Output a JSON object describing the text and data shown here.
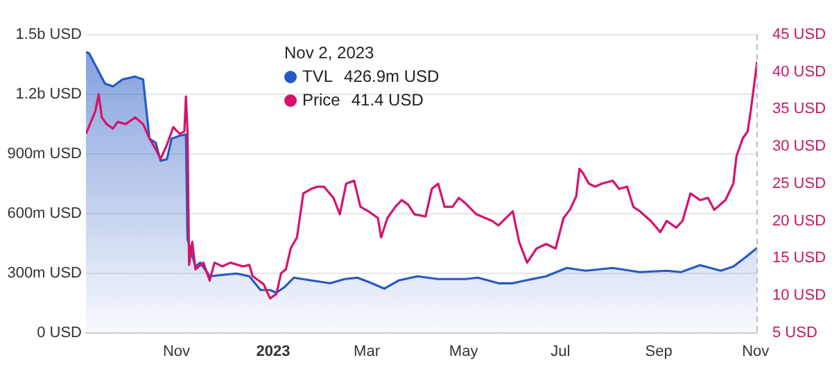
{
  "chart_data": {
    "type": "line",
    "legend": "top",
    "grid": "y",
    "marker": "none",
    "annotations": [
      "Nov 2, 2023",
      "426.9m USD",
      "41.4 USD"
    ],
    "xlim": [
      "2022-09-05",
      "2023-11-02"
    ],
    "xticks": [
      {
        "value": "2022-11-01",
        "label": "Nov"
      },
      {
        "value": "2023-01-01",
        "label": "2023"
      },
      {
        "value": "2023-03-01",
        "label": "Mar"
      },
      {
        "value": "2023-05-01",
        "label": "May"
      },
      {
        "value": "2023-07-01",
        "label": "Jul"
      },
      {
        "value": "2023-09-01",
        "label": "Sep"
      },
      {
        "value": "2023-11-01",
        "label": "Nov"
      }
    ],
    "ylim": [
      0,
      1500000000
    ],
    "yticks": [
      {
        "value": 0,
        "label": "0 USD"
      },
      {
        "value": 300000000,
        "label": "300m USD"
      },
      {
        "value": 600000000,
        "label": "600m USD"
      },
      {
        "value": 900000000,
        "label": "900m USD"
      },
      {
        "value": 1200000000,
        "label": "1.2b USD"
      },
      {
        "value": 1500000000,
        "label": "1.5b USD"
      }
    ],
    "y2lim": [
      5,
      45
    ],
    "y2ticks": [
      {
        "value": 5,
        "label": "5 USD"
      },
      {
        "value": 10,
        "label": "10 USD"
      },
      {
        "value": 15,
        "label": "15 USD"
      },
      {
        "value": 20,
        "label": "20 USD"
      },
      {
        "value": 25,
        "label": "25 USD"
      },
      {
        "value": 30,
        "label": "30 USD"
      },
      {
        "value": 35,
        "label": "35 USD"
      },
      {
        "value": 40,
        "label": "40 USD"
      },
      {
        "value": 45,
        "label": "45 USD"
      }
    ],
    "ref_lines": [
      {
        "axis": "x",
        "value": "2023-11-02",
        "label": null,
        "color": "#bbbbbb",
        "line_style": "dashed"
      }
    ],
    "series": [
      {
        "name": "TVL",
        "type": "area",
        "color": "#2659c4",
        "x": [
          "2022-09-05",
          "2022-09-07",
          "2022-09-17",
          "2022-09-22",
          "2022-09-28",
          "2022-10-06",
          "2022-10-11",
          "2022-10-15",
          "2022-10-19",
          "2022-10-22",
          "2022-10-26",
          "2022-10-29",
          "2022-11-03",
          "2022-11-07",
          "2022-11-08",
          "2022-11-13",
          "2022-11-16",
          "2022-11-22",
          "2022-11-30",
          "2022-12-09",
          "2022-12-17",
          "2022-12-24",
          "2022-12-30",
          "2023-01-03",
          "2023-01-08",
          "2023-01-14",
          "2023-01-25",
          "2023-02-06",
          "2023-02-15",
          "2023-02-23",
          "2023-03-02",
          "2023-03-12",
          "2023-03-21",
          "2023-04-02",
          "2023-04-15",
          "2023-05-02",
          "2023-05-10",
          "2023-05-23",
          "2023-06-01",
          "2023-06-09",
          "2023-06-22",
          "2023-07-05",
          "2023-07-17",
          "2023-08-03",
          "2023-08-20",
          "2023-09-06",
          "2023-09-15",
          "2023-09-27",
          "2023-10-10",
          "2023-10-18",
          "2023-10-27",
          "2023-11-02"
        ],
        "values": [
          1413000000,
          1406000000,
          1254000000,
          1240000000,
          1275000000,
          1289000000,
          1275000000,
          977000000,
          956000000,
          866000000,
          873000000,
          977000000,
          991000000,
          998000000,
          471000000,
          333000000,
          353000000,
          284000000,
          291000000,
          298000000,
          284000000,
          215000000,
          215000000,
          201000000,
          229000000,
          277000000,
          263000000,
          249000000,
          270000000,
          277000000,
          256000000,
          222000000,
          263000000,
          284000000,
          270000000,
          270000000,
          277000000,
          249000000,
          249000000,
          263000000,
          284000000,
          326000000,
          312000000,
          326000000,
          305000000,
          312000000,
          305000000,
          340000000,
          312000000,
          333000000,
          388000000,
          427000000
        ]
      },
      {
        "name": "Price",
        "type": "line",
        "axis": "y2",
        "color": "#d6126b",
        "x": [
          "2022-09-05",
          "2022-09-11",
          "2022-09-13",
          "2022-09-15",
          "2022-09-18",
          "2022-09-22",
          "2022-09-25",
          "2022-09-30",
          "2022-10-06",
          "2022-10-11",
          "2022-10-15",
          "2022-10-19",
          "2022-10-22",
          "2022-10-26",
          "2022-10-30",
          "2022-11-03",
          "2022-11-06",
          "2022-11-07",
          "2022-11-08",
          "2022-11-09",
          "2022-11-11",
          "2022-11-13",
          "2022-11-18",
          "2022-11-22",
          "2022-11-25",
          "2022-11-30",
          "2022-12-05",
          "2022-12-13",
          "2022-12-17",
          "2022-12-19",
          "2022-12-26",
          "2022-12-30",
          "2023-01-03",
          "2023-01-06",
          "2023-01-09",
          "2023-01-12",
          "2023-01-16",
          "2023-01-20",
          "2023-01-25",
          "2023-01-29",
          "2023-02-02",
          "2023-02-08",
          "2023-02-12",
          "2023-02-16",
          "2023-02-21",
          "2023-02-25",
          "2023-03-02",
          "2023-03-08",
          "2023-03-10",
          "2023-03-14",
          "2023-03-19",
          "2023-03-23",
          "2023-03-27",
          "2023-03-31",
          "2023-04-07",
          "2023-04-11",
          "2023-04-15",
          "2023-04-19",
          "2023-04-24",
          "2023-04-28",
          "2023-05-02",
          "2023-05-09",
          "2023-05-19",
          "2023-05-23",
          "2023-06-01",
          "2023-06-05",
          "2023-06-10",
          "2023-06-16",
          "2023-06-22",
          "2023-06-28",
          "2023-07-03",
          "2023-07-07",
          "2023-07-11",
          "2023-07-13",
          "2023-07-15",
          "2023-07-19",
          "2023-07-23",
          "2023-07-27",
          "2023-08-03",
          "2023-08-07",
          "2023-08-12",
          "2023-08-16",
          "2023-08-20",
          "2023-08-27",
          "2023-09-02",
          "2023-09-06",
          "2023-09-12",
          "2023-09-16",
          "2023-09-21",
          "2023-09-27",
          "2023-10-02",
          "2023-10-06",
          "2023-10-13",
          "2023-10-18",
          "2023-10-20",
          "2023-10-24",
          "2023-10-27",
          "2023-10-29",
          "2023-11-02"
        ],
        "values": [
          31.7,
          34.8,
          37.0,
          33.9,
          33.0,
          32.4,
          33.3,
          33.0,
          33.9,
          33.0,
          31.1,
          29.6,
          28.3,
          30.2,
          32.6,
          31.7,
          32.0,
          36.7,
          32.0,
          14.1,
          17.2,
          13.5,
          14.4,
          12.0,
          14.4,
          13.9,
          14.4,
          13.9,
          14.1,
          12.6,
          11.5,
          9.6,
          10.2,
          13.0,
          13.5,
          16.3,
          17.8,
          23.7,
          24.3,
          24.6,
          24.6,
          23.1,
          20.9,
          25.0,
          25.4,
          21.9,
          21.3,
          20.4,
          17.8,
          20.4,
          21.9,
          22.8,
          22.2,
          20.9,
          20.6,
          24.3,
          25.0,
          21.9,
          21.9,
          23.1,
          22.4,
          20.9,
          20.0,
          19.4,
          21.3,
          17.2,
          14.4,
          16.3,
          16.9,
          16.3,
          20.4,
          21.5,
          23.3,
          27.0,
          26.5,
          25.0,
          24.6,
          25.0,
          25.4,
          24.3,
          24.6,
          21.9,
          21.3,
          20.0,
          18.5,
          20.0,
          19.1,
          20.0,
          23.7,
          22.8,
          23.1,
          21.5,
          22.8,
          25.0,
          28.7,
          31.1,
          32.0,
          34.8,
          41.4
        ]
      }
    ]
  }
}
